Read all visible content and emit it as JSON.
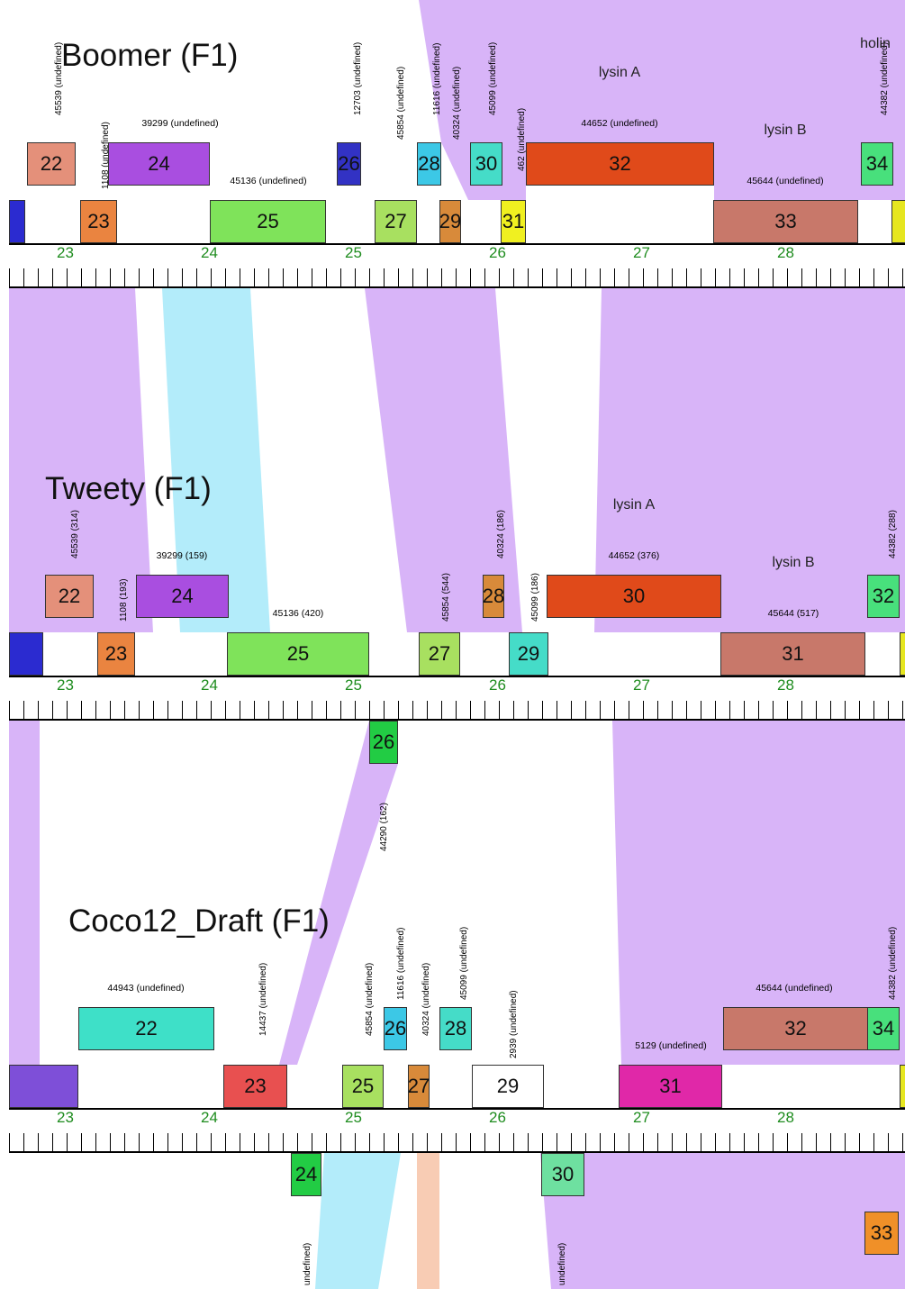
{
  "colors": {
    "band_default": "#d8b4f8",
    "band_cyan": "#b3ecfa",
    "band_salmon": "#f8ccb4",
    "ruler_label": "#1e8c1e"
  },
  "ruler_tick_labels": [
    "23",
    "24",
    "25",
    "26",
    "27",
    "28"
  ],
  "genomes": [
    {
      "id": "boomer",
      "title": "Boomer (F1)",
      "genes": [
        {
          "num": "",
          "color": "#2b2bd0",
          "vlabel": "",
          "hlabel": ""
        },
        {
          "num": "22",
          "color": "#e4907a",
          "vlabel": "45539 (undefined)",
          "hlabel": ""
        },
        {
          "num": "23",
          "color": "#ea8440",
          "vlabel": "1108 (undefined)",
          "hlabel": ""
        },
        {
          "num": "24",
          "color": "#a94ee0",
          "vlabel": "",
          "hlabel": "39299 (undefined)"
        },
        {
          "num": "25",
          "color": "#7fe35a",
          "vlabel": "",
          "hlabel": "45136 (undefined)"
        },
        {
          "num": "26",
          "color": "#3232c4",
          "vlabel": "12703 (undefined)",
          "hlabel": ""
        },
        {
          "num": "27",
          "color": "#a8e060",
          "vlabel": "45854 (undefined)",
          "hlabel": ""
        },
        {
          "num": "28",
          "color": "#3cc8e6",
          "vlabel": "11616 (undefined)",
          "hlabel": ""
        },
        {
          "num": "29",
          "color": "#d88a3a",
          "vlabel": "40324 (undefined)",
          "hlabel": ""
        },
        {
          "num": "30",
          "color": "#45dcc8",
          "vlabel": "45099 (undefined)",
          "hlabel": ""
        },
        {
          "num": "31",
          "color": "#f0f020",
          "vlabel": "462 (undefined)",
          "hlabel": ""
        },
        {
          "num": "32",
          "color": "#e04a1a",
          "vlabel": "",
          "hlabel": "44652 (undefined)",
          "fn": "lysin A"
        },
        {
          "num": "33",
          "color": "#c8786a",
          "vlabel": "",
          "hlabel": "45644 (undefined)",
          "fn": "lysin B"
        },
        {
          "num": "34",
          "color": "#48e07c",
          "vlabel": "44382 (undefined)",
          "hlabel": "",
          "fn": "holin"
        },
        {
          "num": "",
          "color": "#e6e620",
          "vlabel": "",
          "hlabel": ""
        }
      ]
    },
    {
      "id": "tweety",
      "title": "Tweety (F1)",
      "genes": [
        {
          "num": "",
          "color": "#2b2bd0",
          "vlabel": "",
          "hlabel": ""
        },
        {
          "num": "22",
          "color": "#e4907a",
          "vlabel": "45539 (314)",
          "hlabel": ""
        },
        {
          "num": "23",
          "color": "#ea8440",
          "vlabel": "1108 (193)",
          "hlabel": ""
        },
        {
          "num": "24",
          "color": "#a94ee0",
          "vlabel": "",
          "hlabel": "39299 (159)"
        },
        {
          "num": "25",
          "color": "#7fe35a",
          "vlabel": "",
          "hlabel": "45136 (420)"
        },
        {
          "num": "26",
          "color": "#22cc44",
          "vlabel": "44290 (162)",
          "hlabel": ""
        },
        {
          "num": "27",
          "color": "#a8e060",
          "vlabel": "45854 (544)",
          "hlabel": ""
        },
        {
          "num": "28",
          "color": "#d88a3a",
          "vlabel": "40324 (186)",
          "hlabel": ""
        },
        {
          "num": "29",
          "color": "#45dcc8",
          "vlabel": "45099 (186)",
          "hlabel": ""
        },
        {
          "num": "30",
          "color": "#e04a1a",
          "vlabel": "",
          "hlabel": "44652 (376)",
          "fn": "lysin A"
        },
        {
          "num": "31",
          "color": "#c8786a",
          "vlabel": "",
          "hlabel": "45644 (517)",
          "fn": "lysin B"
        },
        {
          "num": "32",
          "color": "#48e07c",
          "vlabel": "44382 (288)",
          "hlabel": ""
        },
        {
          "num": "",
          "color": "#e6e620",
          "vlabel": "",
          "hlabel": ""
        }
      ]
    },
    {
      "id": "coco12",
      "title": "Coco12_Draft (F1)",
      "genes": [
        {
          "num": "",
          "color": "#7e4fd8",
          "vlabel": "",
          "hlabel": ""
        },
        {
          "num": "22",
          "color": "#3ee0c8",
          "vlabel": "",
          "hlabel": "44943 (undefined)"
        },
        {
          "num": "23",
          "color": "#e85050",
          "vlabel": "14437 (undefined)",
          "hlabel": ""
        },
        {
          "num": "24",
          "color": "#22cc44",
          "vlabel": "undefined)",
          "hlabel": ""
        },
        {
          "num": "25",
          "color": "#a8e060",
          "vlabel": "45854 (undefined)",
          "hlabel": ""
        },
        {
          "num": "26",
          "color": "#3cc8e6",
          "vlabel": "11616 (undefined)",
          "hlabel": ""
        },
        {
          "num": "27",
          "color": "#d88a3a",
          "vlabel": "40324 (undefined)",
          "hlabel": ""
        },
        {
          "num": "28",
          "color": "#45dcc8",
          "vlabel": "45099 (undefined)",
          "hlabel": ""
        },
        {
          "num": "29",
          "color": "#ffffff",
          "vlabel": "2939 (undefined)",
          "hlabel": ""
        },
        {
          "num": "30",
          "color": "#6ee0a0",
          "vlabel": "undefined)",
          "hlabel": ""
        },
        {
          "num": "31",
          "color": "#e028a8",
          "vlabel": "",
          "hlabel": "5129 (undefined)"
        },
        {
          "num": "32",
          "color": "#c8786a",
          "vlabel": "",
          "hlabel": "45644 (undefined)"
        },
        {
          "num": "33",
          "color": "#f09028",
          "vlabel": "",
          "hlabel": ""
        },
        {
          "num": "34",
          "color": "#48e07c",
          "vlabel": "44382 (undefined)",
          "hlabel": ""
        },
        {
          "num": "",
          "color": "#e6e620",
          "vlabel": "",
          "hlabel": ""
        }
      ]
    }
  ]
}
